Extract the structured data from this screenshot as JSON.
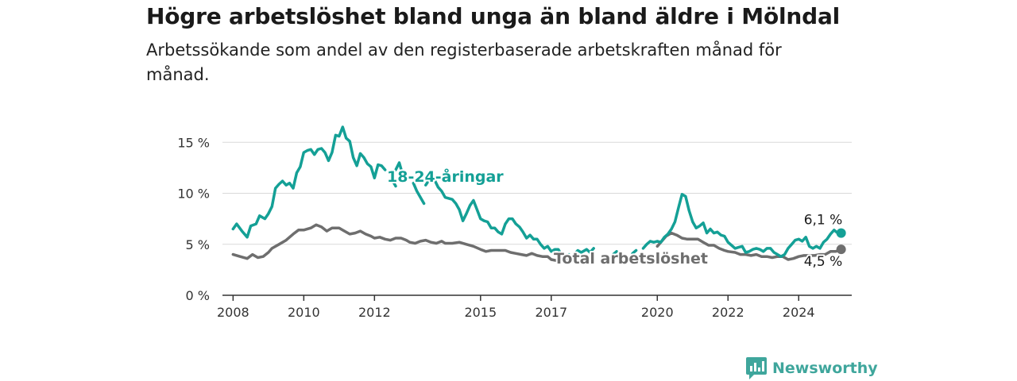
{
  "title": "Högre arbetslöshet bland unga än bland äldre i Mölndal",
  "subtitle": "Arbetssökande som andel av den registerbaserade arbetskraften månad för månad.",
  "brand": {
    "name": "Newsworthy",
    "icon": "newsworthy-logo-icon"
  },
  "colors": {
    "youth": "#14a096",
    "total": "#6e6e6e",
    "grid": "#d9d9d9",
    "axis": "#333333",
    "brand": "#3fa69c"
  },
  "chart_data": {
    "type": "line",
    "ylim": [
      0,
      16.5
    ],
    "xlim": [
      2007.7,
      2025.5
    ],
    "yticks": [
      0,
      5,
      10,
      15
    ],
    "ytick_labels": [
      "0 %",
      "5 %",
      "10 %",
      "15 %"
    ],
    "xticks": [
      2008,
      2010,
      2012,
      2015,
      2017,
      2020,
      2022,
      2024
    ],
    "xtick_labels": [
      "2008",
      "2010",
      "2012",
      "2015",
      "2017",
      "2020",
      "2022",
      "2024"
    ],
    "grid": true,
    "legend": "inline labels",
    "series": [
      {
        "key": "youth",
        "name": "18-24-åringar",
        "end_label": "6,1 %",
        "segments": [
          [
            [
              2008.0,
              6.5
            ],
            [
              2008.1,
              7.0
            ],
            [
              2008.25,
              6.3
            ],
            [
              2008.4,
              5.7
            ],
            [
              2008.5,
              6.8
            ],
            [
              2008.65,
              7.0
            ],
            [
              2008.75,
              7.8
            ],
            [
              2008.9,
              7.5
            ],
            [
              2009.0,
              8.0
            ],
            [
              2009.1,
              8.7
            ],
            [
              2009.2,
              10.5
            ],
            [
              2009.3,
              10.9
            ],
            [
              2009.4,
              11.2
            ],
            [
              2009.5,
              10.8
            ],
            [
              2009.6,
              11.0
            ],
            [
              2009.7,
              10.5
            ],
            [
              2009.8,
              12.0
            ],
            [
              2009.9,
              12.6
            ],
            [
              2010.0,
              14.0
            ],
            [
              2010.1,
              14.2
            ],
            [
              2010.2,
              14.3
            ],
            [
              2010.3,
              13.8
            ],
            [
              2010.4,
              14.3
            ],
            [
              2010.5,
              14.4
            ],
            [
              2010.6,
              14.0
            ],
            [
              2010.7,
              13.2
            ],
            [
              2010.8,
              14.0
            ],
            [
              2010.9,
              15.7
            ],
            [
              2011.0,
              15.6
            ],
            [
              2011.1,
              16.5
            ],
            [
              2011.2,
              15.4
            ],
            [
              2011.3,
              15.1
            ],
            [
              2011.4,
              13.5
            ],
            [
              2011.5,
              12.7
            ],
            [
              2011.6,
              13.9
            ],
            [
              2011.7,
              13.5
            ],
            [
              2011.8,
              12.9
            ],
            [
              2011.9,
              12.6
            ],
            [
              2012.0,
              11.5
            ],
            [
              2012.1,
              12.8
            ],
            [
              2012.2,
              12.7
            ],
            [
              2012.3,
              12.3
            ]
          ],
          [
            [
              2012.5,
              11.3
            ],
            [
              2012.6,
              10.7
            ]
          ],
          [
            [
              2012.6,
              12.3
            ],
            [
              2012.7,
              13.0
            ],
            [
              2012.8,
              11.8
            ]
          ],
          [
            [
              2013.1,
              11.0
            ],
            [
              2013.2,
              10.2
            ],
            [
              2013.3,
              9.6
            ],
            [
              2013.4,
              9.0
            ]
          ],
          [
            [
              2013.45,
              10.8
            ],
            [
              2013.6,
              11.6
            ],
            [
              2013.7,
              11.3
            ],
            [
              2013.8,
              10.6
            ],
            [
              2013.9,
              10.2
            ],
            [
              2014.0,
              9.6
            ],
            [
              2014.1,
              9.5
            ],
            [
              2014.2,
              9.4
            ],
            [
              2014.3,
              9.0
            ],
            [
              2014.4,
              8.4
            ],
            [
              2014.5,
              7.3
            ],
            [
              2014.6,
              8.0
            ],
            [
              2014.7,
              8.8
            ],
            [
              2014.8,
              9.3
            ],
            [
              2014.9,
              8.4
            ],
            [
              2015.0,
              7.5
            ],
            [
              2015.1,
              7.3
            ],
            [
              2015.2,
              7.2
            ],
            [
              2015.3,
              6.6
            ],
            [
              2015.4,
              6.6
            ],
            [
              2015.5,
              6.2
            ],
            [
              2015.6,
              6.0
            ],
            [
              2015.7,
              7.0
            ],
            [
              2015.8,
              7.5
            ],
            [
              2015.9,
              7.5
            ],
            [
              2016.0,
              7.0
            ],
            [
              2016.1,
              6.7
            ],
            [
              2016.2,
              6.2
            ],
            [
              2016.3,
              5.6
            ],
            [
              2016.4,
              5.9
            ],
            [
              2016.5,
              5.5
            ],
            [
              2016.6,
              5.5
            ],
            [
              2016.7,
              5.0
            ],
            [
              2016.8,
              4.6
            ],
            [
              2016.9,
              4.8
            ],
            [
              2017.0,
              4.3
            ],
            [
              2017.1,
              4.5
            ],
            [
              2017.2,
              4.5
            ],
            [
              2017.3,
              3.9
            ],
            [
              2017.4,
              3.8
            ],
            [
              2017.5,
              4.0
            ]
          ],
          [
            [
              2017.65,
              4.0
            ],
            [
              2017.75,
              4.4
            ],
            [
              2017.85,
              4.2
            ],
            [
              2018.0,
              4.5
            ],
            [
              2018.1,
              4.2
            ],
            [
              2018.2,
              4.6
            ]
          ],
          [
            [
              2018.75,
              4.0
            ],
            [
              2018.85,
              4.3
            ]
          ],
          [
            [
              2019.3,
              4.1
            ],
            [
              2019.4,
              4.4
            ]
          ],
          [
            [
              2019.6,
              4.6
            ],
            [
              2019.7,
              5.0
            ],
            [
              2019.8,
              5.3
            ],
            [
              2019.9,
              5.2
            ],
            [
              2020.0,
              5.3
            ],
            [
              2020.1,
              5.2
            ],
            [
              2020.2,
              5.7
            ],
            [
              2020.3,
              6.0
            ],
            [
              2020.4,
              6.5
            ],
            [
              2020.5,
              7.2
            ],
            [
              2020.6,
              8.6
            ],
            [
              2020.7,
              9.9
            ],
            [
              2020.8,
              9.7
            ],
            [
              2020.9,
              8.3
            ],
            [
              2021.0,
              7.2
            ],
            [
              2021.1,
              6.6
            ],
            [
              2021.2,
              6.8
            ],
            [
              2021.3,
              7.1
            ],
            [
              2021.4,
              6.1
            ],
            [
              2021.5,
              6.5
            ],
            [
              2021.6,
              6.1
            ],
            [
              2021.7,
              6.2
            ],
            [
              2021.8,
              5.9
            ],
            [
              2021.9,
              5.8
            ],
            [
              2022.0,
              5.2
            ],
            [
              2022.1,
              4.9
            ],
            [
              2022.2,
              4.6
            ],
            [
              2022.3,
              4.7
            ],
            [
              2022.4,
              4.8
            ],
            [
              2022.5,
              4.2
            ],
            [
              2022.6,
              4.3
            ],
            [
              2022.7,
              4.5
            ],
            [
              2022.8,
              4.6
            ],
            [
              2022.9,
              4.5
            ],
            [
              2023.0,
              4.3
            ],
            [
              2023.1,
              4.6
            ],
            [
              2023.2,
              4.6
            ],
            [
              2023.3,
              4.2
            ],
            [
              2023.4,
              4.0
            ],
            [
              2023.5,
              3.8
            ],
            [
              2023.6,
              4.0
            ],
            [
              2023.7,
              4.6
            ],
            [
              2023.8,
              5.0
            ],
            [
              2023.9,
              5.4
            ],
            [
              2024.0,
              5.5
            ],
            [
              2024.1,
              5.3
            ],
            [
              2024.2,
              5.7
            ],
            [
              2024.3,
              4.8
            ],
            [
              2024.4,
              4.6
            ],
            [
              2024.5,
              4.8
            ],
            [
              2024.6,
              4.6
            ],
            [
              2024.7,
              5.2
            ],
            [
              2024.8,
              5.5
            ],
            [
              2024.9,
              6.0
            ],
            [
              2025.0,
              6.4
            ],
            [
              2025.1,
              6.1
            ],
            [
              2025.2,
              6.1
            ]
          ]
        ]
      },
      {
        "key": "total",
        "name": "Total arbetslöshet",
        "end_label": "4,5 %",
        "segments": [
          [
            [
              2008.0,
              4.0
            ],
            [
              2008.2,
              3.8
            ],
            [
              2008.4,
              3.6
            ],
            [
              2008.55,
              4.0
            ],
            [
              2008.7,
              3.7
            ],
            [
              2008.85,
              3.8
            ],
            [
              2009.0,
              4.2
            ],
            [
              2009.1,
              4.6
            ],
            [
              2009.3,
              5.0
            ],
            [
              2009.5,
              5.4
            ],
            [
              2009.7,
              6.0
            ],
            [
              2009.85,
              6.4
            ],
            [
              2010.0,
              6.4
            ],
            [
              2010.2,
              6.6
            ],
            [
              2010.35,
              6.9
            ],
            [
              2010.5,
              6.7
            ],
            [
              2010.65,
              6.3
            ],
            [
              2010.8,
              6.6
            ],
            [
              2011.0,
              6.6
            ],
            [
              2011.15,
              6.3
            ],
            [
              2011.3,
              6.0
            ],
            [
              2011.45,
              6.1
            ],
            [
              2011.6,
              6.3
            ],
            [
              2011.75,
              6.0
            ],
            [
              2011.9,
              5.8
            ],
            [
              2012.0,
              5.6
            ],
            [
              2012.15,
              5.7
            ],
            [
              2012.3,
              5.5
            ],
            [
              2012.45,
              5.4
            ],
            [
              2012.6,
              5.6
            ],
            [
              2012.75,
              5.6
            ],
            [
              2012.9,
              5.4
            ],
            [
              2013.0,
              5.2
            ],
            [
              2013.15,
              5.1
            ],
            [
              2013.3,
              5.3
            ],
            [
              2013.45,
              5.4
            ],
            [
              2013.6,
              5.2
            ],
            [
              2013.75,
              5.1
            ],
            [
              2013.9,
              5.3
            ],
            [
              2014.0,
              5.1
            ],
            [
              2014.2,
              5.1
            ],
            [
              2014.4,
              5.2
            ],
            [
              2014.6,
              5.0
            ],
            [
              2014.8,
              4.8
            ],
            [
              2015.0,
              4.5
            ],
            [
              2015.15,
              4.3
            ],
            [
              2015.3,
              4.4
            ],
            [
              2015.5,
              4.4
            ],
            [
              2015.7,
              4.4
            ],
            [
              2015.85,
              4.2
            ],
            [
              2016.0,
              4.1
            ],
            [
              2016.15,
              4.0
            ],
            [
              2016.3,
              3.9
            ],
            [
              2016.45,
              4.1
            ],
            [
              2016.6,
              3.9
            ],
            [
              2016.75,
              3.8
            ],
            [
              2016.9,
              3.8
            ],
            [
              2017.0,
              3.5
            ],
            [
              2017.15,
              3.4
            ],
            [
              2017.3,
              3.6
            ],
            [
              2017.45,
              3.5
            ],
            [
              2017.6,
              3.7
            ],
            [
              2017.7,
              3.6
            ]
          ],
          [
            [
              2020.0,
              4.8
            ],
            [
              2020.1,
              5.2
            ],
            [
              2020.25,
              5.8
            ],
            [
              2020.4,
              6.1
            ],
            [
              2020.55,
              5.9
            ],
            [
              2020.7,
              5.6
            ],
            [
              2020.85,
              5.5
            ],
            [
              2021.0,
              5.5
            ],
            [
              2021.15,
              5.5
            ],
            [
              2021.3,
              5.2
            ],
            [
              2021.45,
              4.9
            ],
            [
              2021.6,
              4.9
            ],
            [
              2021.75,
              4.6
            ],
            [
              2021.9,
              4.4
            ],
            [
              2022.0,
              4.3
            ],
            [
              2022.2,
              4.2
            ],
            [
              2022.35,
              4.0
            ],
            [
              2022.5,
              4.0
            ],
            [
              2022.65,
              3.9
            ],
            [
              2022.8,
              4.0
            ],
            [
              2022.95,
              3.8
            ],
            [
              2023.1,
              3.8
            ],
            [
              2023.25,
              3.7
            ],
            [
              2023.4,
              3.8
            ],
            [
              2023.55,
              3.8
            ],
            [
              2023.7,
              3.5
            ],
            [
              2023.85,
              3.6
            ],
            [
              2024.0,
              3.8
            ],
            [
              2024.15,
              3.9
            ],
            [
              2024.3,
              3.9
            ],
            [
              2024.45,
              3.9
            ],
            [
              2024.6,
              4.0
            ],
            [
              2024.75,
              4.0
            ],
            [
              2024.9,
              4.3
            ],
            [
              2025.05,
              4.3
            ],
            [
              2025.2,
              4.5
            ]
          ]
        ]
      }
    ]
  }
}
